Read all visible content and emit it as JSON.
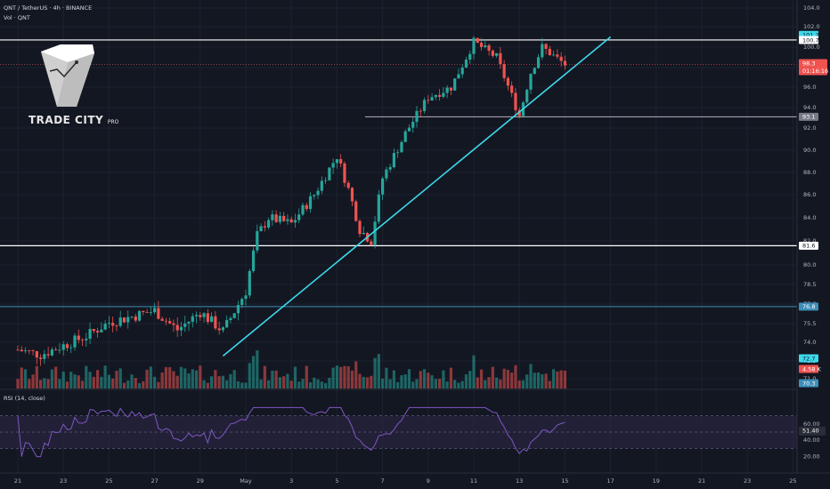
{
  "header": {
    "symbol_line": "QNT / TetherUS · 4h · BINANCE",
    "volume_line": "Vol · QNT",
    "rsi_line": "RSI (14, close)"
  },
  "logo": {
    "brand": "TRADE CITY",
    "suffix": "PRO"
  },
  "colors": {
    "background": "#131722",
    "up": "#26a69a",
    "down": "#ef5350",
    "trendline": "#3dd9eb",
    "rsi": "#7e57c2",
    "rsi_band": "#2a2540",
    "level_line": "#ffffff",
    "blue_level": "#2962ff",
    "price_badge": "#ef5350"
  },
  "chart_data": {
    "type": "candlestick",
    "symbol": "QNT / TetherUS",
    "timeframe": "4h",
    "exchange": "BINANCE",
    "x_ticks": [
      "21",
      "23",
      "25",
      "27",
      "29",
      "May",
      "3",
      "5",
      "7",
      "9",
      "11",
      "13",
      "15",
      "17",
      "19",
      "21",
      "23",
      "25"
    ],
    "y_ticks": [
      "104.0",
      "102.0",
      "100.0",
      "98.0",
      "96.0",
      "94.0",
      "92.0",
      "90.0",
      "88.0",
      "86.0",
      "84.0",
      "82.0",
      "80.0",
      "78.5",
      "77.0",
      "75.5",
      "74.0",
      "72.5",
      "71.0"
    ],
    "ohlc_keypoints": [
      {
        "day": "Apr 21",
        "close": 73.4
      },
      {
        "day": "Apr 22",
        "close": 73.0
      },
      {
        "day": "Apr 24",
        "close": 74.5
      },
      {
        "day": "Apr 25",
        "close": 75.6
      },
      {
        "day": "Apr 27",
        "close": 76.5
      },
      {
        "day": "Apr 28",
        "close": 75.0
      },
      {
        "day": "Apr 29",
        "close": 76.4
      },
      {
        "day": "Apr 30",
        "close": 74.9
      },
      {
        "day": "May 1",
        "close": 78.0
      },
      {
        "day": "May 1.5",
        "close": 82.5
      },
      {
        "day": "May 2",
        "close": 84.0
      },
      {
        "day": "May 3",
        "close": 83.5
      },
      {
        "day": "May 4",
        "close": 86.0
      },
      {
        "day": "May 5",
        "close": 89.5
      },
      {
        "day": "May 5.5",
        "close": 86.5
      },
      {
        "day": "May 6",
        "close": 83.0
      },
      {
        "day": "May 6.5",
        "close": 82.0
      },
      {
        "day": "May 7",
        "close": 87.5
      },
      {
        "day": "May 8",
        "close": 91.5
      },
      {
        "day": "May 9",
        "close": 95.0
      },
      {
        "day": "May 10",
        "close": 96.0
      },
      {
        "day": "May 11",
        "close": 100.5
      },
      {
        "day": "May 12",
        "close": 99.0
      },
      {
        "day": "May 13",
        "close": 93.2
      },
      {
        "day": "May 13.5",
        "close": 97.5
      },
      {
        "day": "May 14",
        "close": 100.0
      },
      {
        "day": "May 15",
        "close": 98.3
      }
    ],
    "horizontal_levels": [
      {
        "price": 100.7,
        "label": "100.7"
      },
      {
        "price": 93.1,
        "label": "93.1"
      },
      {
        "price": 81.6,
        "label": "81.6"
      },
      {
        "price": 76.8,
        "label": "76.8"
      }
    ],
    "trendline": {
      "from": {
        "day": "Apr 30",
        "price": 72.9
      },
      "to": {
        "day": "May 17",
        "price": 101.0
      }
    },
    "price_badges": [
      {
        "label": "101.2"
      },
      {
        "label": "100.7"
      },
      {
        "label": "98.3",
        "sub": "01:16:16"
      },
      {
        "label": "93.1"
      },
      {
        "label": "81.6"
      },
      {
        "label": "76.8"
      },
      {
        "label": "72.7"
      },
      {
        "label": "4.58 K"
      },
      {
        "label": "70.3"
      }
    ],
    "rsi": {
      "period": 14,
      "source": "close",
      "current": "51.40",
      "y_ticks": [
        "60.00",
        "40.00",
        "20.00"
      ],
      "band": [
        70,
        30
      ],
      "mid": 50
    }
  }
}
